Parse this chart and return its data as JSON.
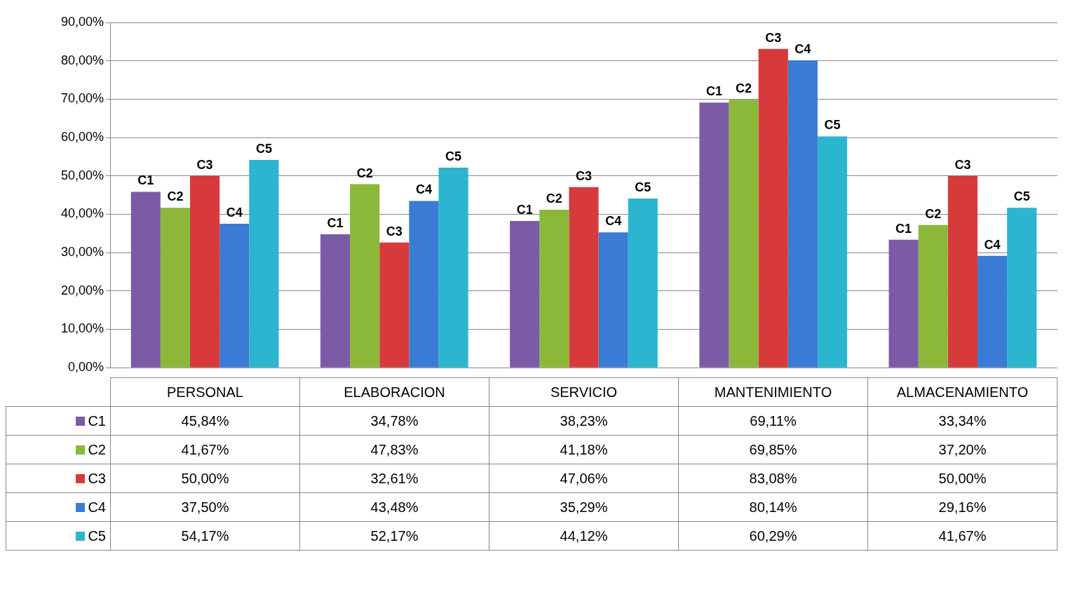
{
  "chart_data": {
    "type": "bar",
    "categories": [
      "PERSONAL",
      "ELABORACION",
      "SERVICIO",
      "MANTENIMIENTO",
      "ALMACENAMIENTO"
    ],
    "series": [
      {
        "name": "C1",
        "color": "#7b5ba6",
        "values": [
          45.84,
          34.78,
          38.23,
          69.11,
          33.34
        ],
        "value_labels": [
          "45,84%",
          "34,78%",
          "38,23%",
          "69,11%",
          "33,34%"
        ]
      },
      {
        "name": "C2",
        "color": "#8cb83a",
        "values": [
          41.67,
          47.83,
          41.18,
          69.85,
          37.2
        ],
        "value_labels": [
          "41,67%",
          "47,83%",
          "41,18%",
          "69,85%",
          "37,20%"
        ]
      },
      {
        "name": "C3",
        "color": "#d63a3a",
        "values": [
          50,
          32.61,
          47.06,
          83.08,
          50
        ],
        "value_labels": [
          "50,00%",
          "32,61%",
          "47,06%",
          "83,08%",
          "50,00%"
        ]
      },
      {
        "name": "C4",
        "color": "#3a7bd5",
        "values": [
          37.5,
          43.48,
          35.29,
          80.14,
          29.16
        ],
        "value_labels": [
          "37,50%",
          "43,48%",
          "35,29%",
          "80,14%",
          "29,16%"
        ]
      },
      {
        "name": "C5",
        "color": "#2bb5cf",
        "values": [
          54.17,
          52.17,
          44.12,
          60.29,
          41.67
        ],
        "value_labels": [
          "54,17%",
          "52,17%",
          "44,12%",
          "60,29%",
          "41,67%"
        ]
      }
    ],
    "ylim": [
      0,
      90
    ],
    "yticks": [
      {
        "value": 0,
        "label": "0,00%"
      },
      {
        "value": 10,
        "label": "10,00%"
      },
      {
        "value": 20,
        "label": "20,00%"
      },
      {
        "value": 30,
        "label": "30,00%"
      },
      {
        "value": 40,
        "label": "40,00%"
      },
      {
        "value": 50,
        "label": "50,00%"
      },
      {
        "value": 60,
        "label": "60,00%"
      },
      {
        "value": 70,
        "label": "70,00%"
      },
      {
        "value": 80,
        "label": "80,00%"
      },
      {
        "value": 90,
        "label": "90,00%"
      }
    ],
    "grid": "y",
    "legend": "bottom"
  }
}
